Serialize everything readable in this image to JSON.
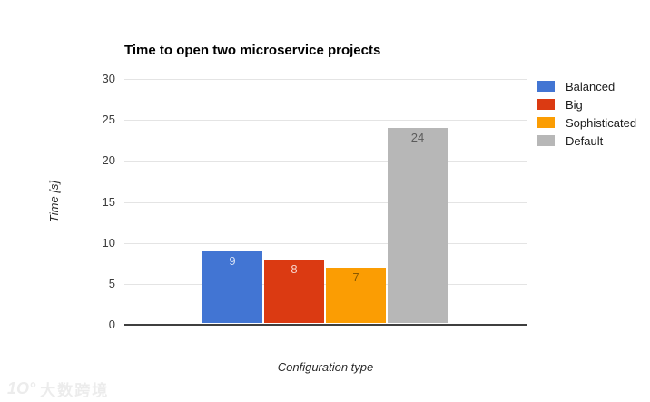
{
  "chart_data": {
    "type": "bar",
    "title": "Time to open two microservice projects",
    "xlabel": "Configuration type",
    "ylabel": "Time [s]",
    "ylim": [
      0,
      30
    ],
    "yticks": [
      0,
      5,
      10,
      15,
      20,
      25,
      30
    ],
    "grid": true,
    "legend_position": "right",
    "categories": [
      "Balanced",
      "Big",
      "Sophisticated",
      "Default"
    ],
    "values": [
      9,
      8,
      7,
      24
    ],
    "series": [
      {
        "name": "Balanced",
        "value": 9,
        "color": "#4275d3",
        "label_color": "rgba(255,255,255,0.78)"
      },
      {
        "name": "Big",
        "value": 8,
        "color": "#db3a12",
        "label_color": "rgba(255,255,255,0.78)"
      },
      {
        "name": "Sophisticated",
        "value": 7,
        "color": "#fb9d03",
        "label_color": "rgba(61,42,0,0.60)"
      },
      {
        "name": "Default",
        "value": 24,
        "color": "#b7b7b7",
        "label_color": "rgba(0,0,0,0.50)"
      }
    ]
  },
  "watermark": {
    "logo": "1O°",
    "text": "大数跨境"
  }
}
